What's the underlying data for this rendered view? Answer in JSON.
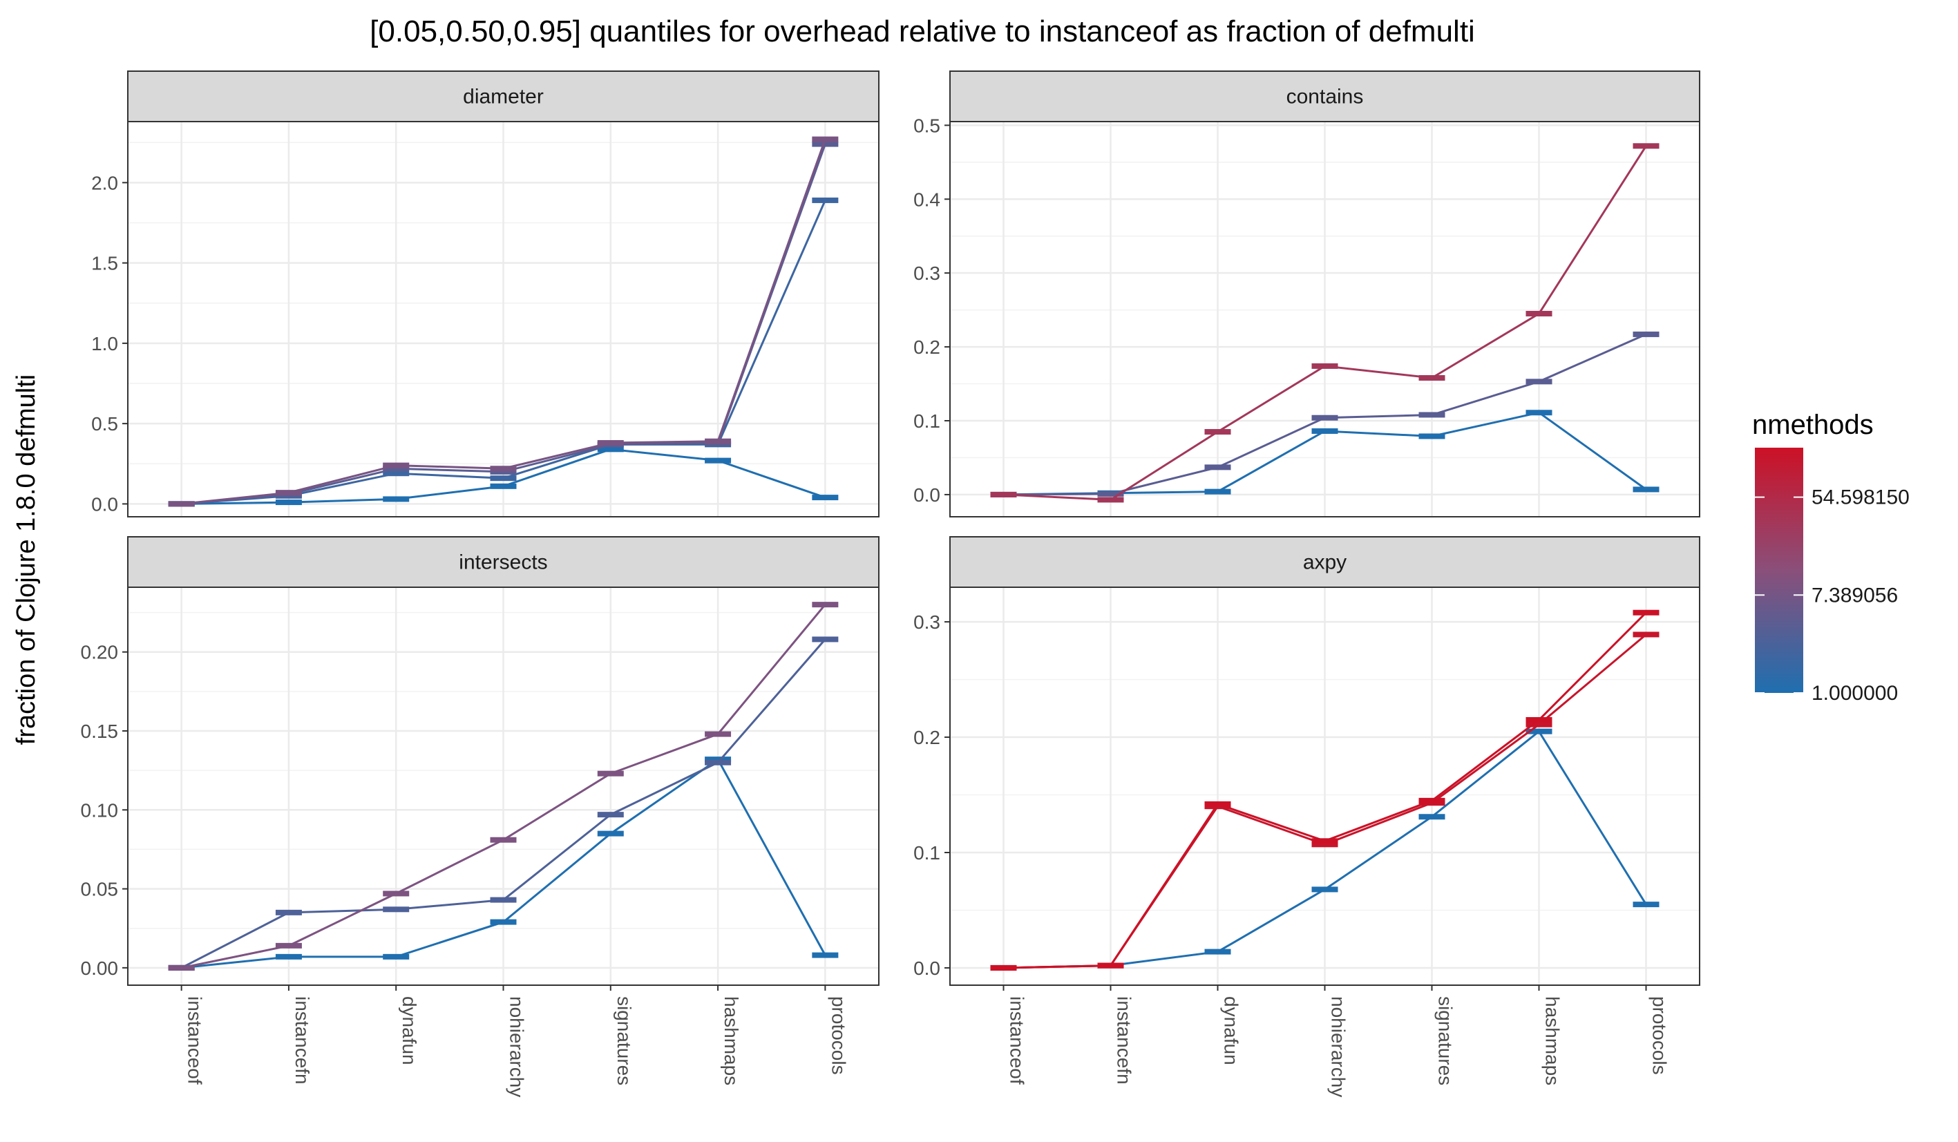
{
  "chart_data": {
    "type": "line",
    "title": "[0.05,0.50,0.95] quantiles for overhead relative to instanceof as fraction of defmulti",
    "ylabel": "fraction of Clojure 1.8.0 defmulti",
    "xlabel": "",
    "categories": [
      "instanceof",
      "instancefn",
      "dynafun",
      "nohierarchy",
      "signatures",
      "hashmaps",
      "protocols"
    ],
    "legend": {
      "title": "nmethods",
      "scale": "log",
      "placement": "right",
      "breaks": [
        "54.598150",
        "7.389056",
        "1.000000"
      ],
      "low_color": "#1f6fb0",
      "high_color": "#cc1126"
    },
    "grid": true,
    "panels": [
      {
        "strip": "diameter",
        "ylim": [
          -0.08,
          2.38
        ],
        "yticks": [
          "0.0",
          "0.5",
          "1.0",
          "1.5",
          "2.0"
        ],
        "ytick_values": [
          0,
          0.5,
          1.0,
          1.5,
          2.0
        ],
        "series": [
          {
            "nmethods": 1,
            "values": [
              0,
              0.01,
              0.03,
              0.11,
              0.34,
              0.27,
              0.04
            ]
          },
          {
            "nmethods": 2,
            "values": [
              0,
              0.05,
              0.19,
              0.16,
              0.37,
              0.37,
              1.89
            ]
          },
          {
            "nmethods": 4,
            "values": [
              0,
              0.06,
              0.22,
              0.2,
              0.37,
              0.38,
              2.24
            ]
          },
          {
            "nmethods": 8,
            "values": [
              0,
              0.07,
              0.24,
              0.22,
              0.38,
              0.39,
              2.27
            ]
          }
        ]
      },
      {
        "strip": "contains",
        "ylim": [
          -0.03,
          0.505
        ],
        "yticks": [
          "0.0",
          "0.1",
          "0.2",
          "0.3",
          "0.4",
          "0.5"
        ],
        "ytick_values": [
          0,
          0.1,
          0.2,
          0.3,
          0.4,
          0.5
        ],
        "series": [
          {
            "nmethods": 1,
            "values": [
              0,
              0.002,
              0.004,
              0.086,
              0.079,
              0.111,
              0.007
            ]
          },
          {
            "nmethods": 4,
            "values": [
              0,
              0.001,
              0.037,
              0.104,
              0.108,
              0.153,
              0.217
            ]
          },
          {
            "nmethods": 32,
            "values": [
              0,
              -0.007,
              0.085,
              0.174,
              0.158,
              0.245,
              0.472
            ]
          }
        ]
      },
      {
        "strip": "intersects",
        "ylim": [
          -0.011,
          0.241
        ],
        "yticks": [
          "0.00",
          "0.05",
          "0.10",
          "0.15",
          "0.20"
        ],
        "ytick_values": [
          0,
          0.05,
          0.1,
          0.15,
          0.2
        ],
        "series": [
          {
            "nmethods": 1,
            "values": [
              0,
              0.007,
              0.007,
              0.029,
              0.085,
              0.132,
              0.008
            ]
          },
          {
            "nmethods": 3,
            "values": [
              0,
              0.035,
              0.037,
              0.043,
              0.097,
              0.13,
              0.208
            ]
          },
          {
            "nmethods": 9,
            "values": [
              0,
              0.014,
              0.047,
              0.081,
              0.123,
              0.148,
              0.23
            ]
          }
        ]
      },
      {
        "strip": "axpy",
        "ylim": [
          -0.015,
          0.33
        ],
        "yticks": [
          "0.0",
          "0.1",
          "0.2",
          "0.3"
        ],
        "ytick_values": [
          0,
          0.1,
          0.2,
          0.3
        ],
        "series": [
          {
            "nmethods": 1,
            "values": [
              0,
              0.002,
              0.014,
              0.068,
              0.131,
              0.205,
              0.055
            ]
          },
          {
            "nmethods": 128,
            "values": [
              0,
              0.002,
              0.14,
              0.107,
              0.143,
              0.211,
              0.289
            ]
          },
          {
            "nmethods": 150,
            "values": [
              0,
              0.002,
              0.142,
              0.11,
              0.145,
              0.215,
              0.308
            ]
          }
        ]
      }
    ]
  }
}
